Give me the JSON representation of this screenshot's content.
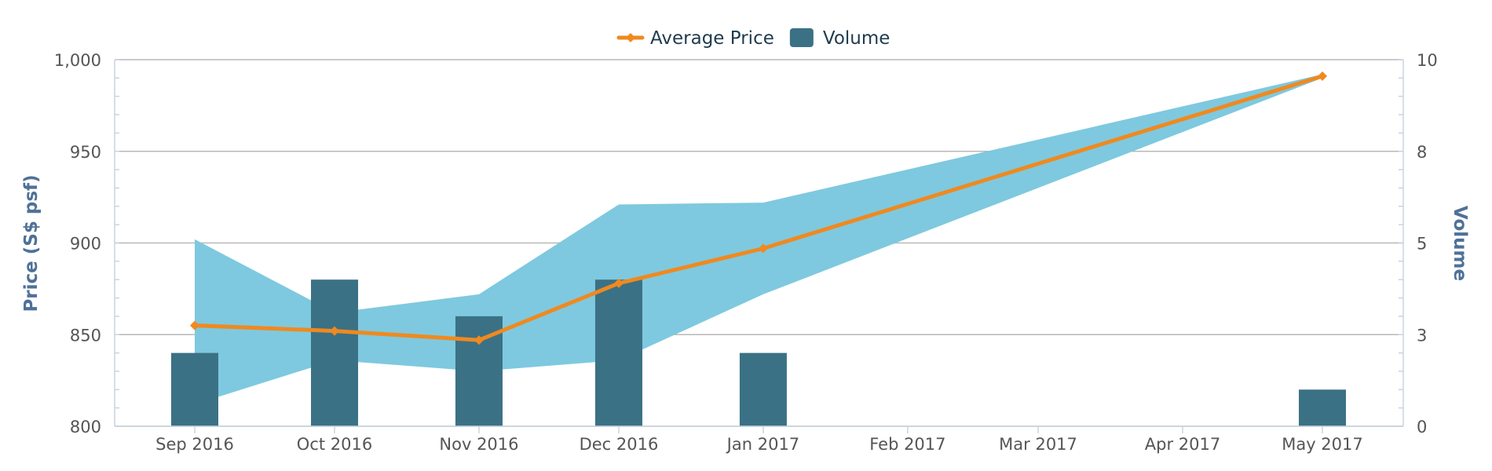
{
  "chart_data": {
    "type": "bar+line+area",
    "categories": [
      "Sep 2016",
      "Oct 2016",
      "Nov 2016",
      "Dec 2016",
      "Jan 2017",
      "Feb 2017",
      "Mar 2017",
      "Apr 2017",
      "May 2017"
    ],
    "x_dates": [
      "2016-09-01",
      "2016-10-01",
      "2016-11-01",
      "2016-12-01",
      "2017-01-01",
      "2017-02-01",
      "2017-03-01",
      "2017-04-01",
      "2017-05-01"
    ],
    "series": [
      {
        "name": "Average Price",
        "type": "line",
        "axis": "left",
        "color": "#f0891f",
        "points": [
          {
            "x": "Sep 2016",
            "y": 855
          },
          {
            "x": "Oct 2016",
            "y": 852
          },
          {
            "x": "Nov 2016",
            "y": 847
          },
          {
            "x": "Dec 2016",
            "y": 878
          },
          {
            "x": "Jan 2017",
            "y": 897
          },
          {
            "x": "May 2017",
            "y": 991
          }
        ]
      },
      {
        "name": "Volume",
        "type": "bar",
        "axis": "right",
        "color": "#3b7185",
        "points": [
          {
            "x": "Sep 2016",
            "y": 2
          },
          {
            "x": "Oct 2016",
            "y": 4
          },
          {
            "x": "Nov 2016",
            "y": 3
          },
          {
            "x": "Dec 2016",
            "y": 4
          },
          {
            "x": "Jan 2017",
            "y": 2
          },
          {
            "x": "May 2017",
            "y": 1
          }
        ]
      },
      {
        "type": "arearange",
        "axis": "left",
        "color": "#7ec9df",
        "points": [
          {
            "x": "Sep 2016",
            "low": 812,
            "high": 902
          },
          {
            "x": "Oct 2016",
            "low": 836,
            "high": 862
          },
          {
            "x": "Nov 2016",
            "low": 830,
            "high": 872
          },
          {
            "x": "Dec 2016",
            "low": 836,
            "high": 921
          },
          {
            "x": "Jan 2017",
            "low": 872,
            "high": 922
          },
          {
            "x": "May 2017",
            "low": 990,
            "high": 992
          }
        ]
      }
    ],
    "left_axis": {
      "title": "Price (S$ psf)",
      "min": 800,
      "max": 1000,
      "ticks": [
        800,
        850,
        900,
        950,
        1000
      ],
      "tick_labels": [
        "800",
        "850",
        "900",
        "950",
        "1,000"
      ]
    },
    "right_axis": {
      "title": "Volume",
      "min": 0,
      "max": 10,
      "ticks": [
        0,
        2.5,
        5,
        7.5,
        10
      ],
      "tick_labels": [
        "0",
        "3",
        "5",
        "8",
        "10"
      ]
    },
    "legend": {
      "position": "top-center",
      "items": [
        {
          "label": "Average Price",
          "symbol": "line",
          "color": "#f0891f"
        },
        {
          "label": "Volume",
          "symbol": "box",
          "color": "#3b7185"
        }
      ]
    },
    "grid": true,
    "colors": {
      "grid": "#b8b8b8",
      "axis_line": "#c8d4e0",
      "tick_text": "#555555",
      "axis_title": "#4f7198",
      "legend_text": "#1f3b4d"
    }
  }
}
